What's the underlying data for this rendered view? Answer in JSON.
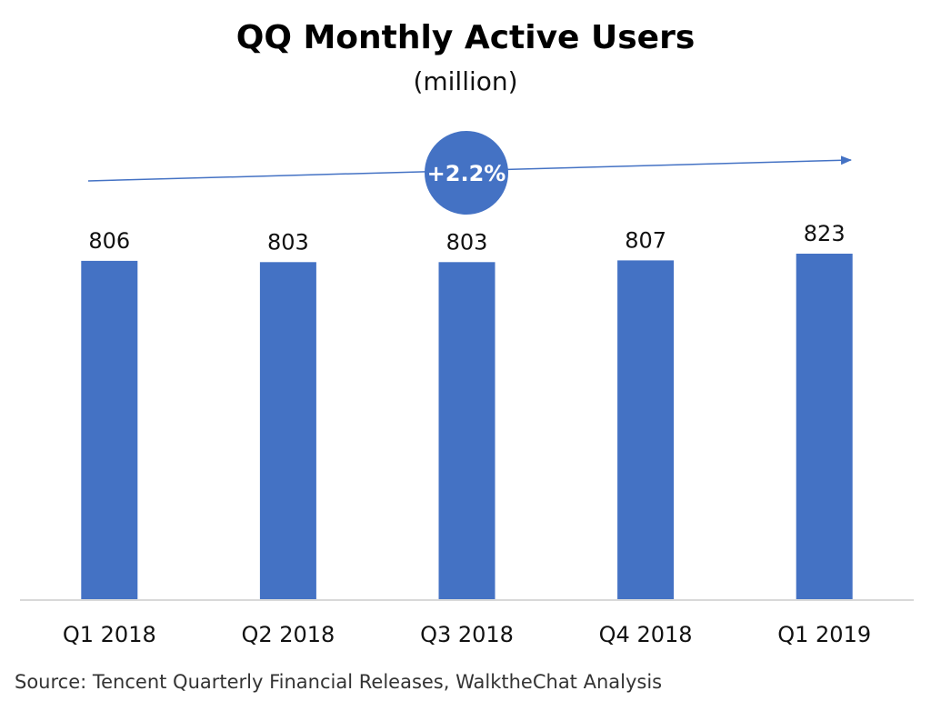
{
  "title": "QQ Monthly Active Users",
  "subtitle": "(million)",
  "source": "Source: Tencent Quarterly Financial Releases, WalktheChat Analysis",
  "growth_badge": {
    "label": "+2.2%",
    "color": "#4472C4"
  },
  "colors": {
    "bar": "#4472C4",
    "trend_arrow": "#4472C4",
    "axis": "#D9D9D9"
  },
  "chart_data": {
    "type": "bar",
    "categories": [
      "Q1 2018",
      "Q2 2018",
      "Q3 2018",
      "Q4 2018",
      "Q1 2019"
    ],
    "values": [
      806,
      803,
      803,
      807,
      823
    ],
    "title": "QQ Monthly Active Users",
    "subtitle": "(million)",
    "xlabel": "",
    "ylabel": "",
    "data_labels": true,
    "grid": false,
    "legend": "none",
    "ylim": [
      0,
      823
    ]
  }
}
